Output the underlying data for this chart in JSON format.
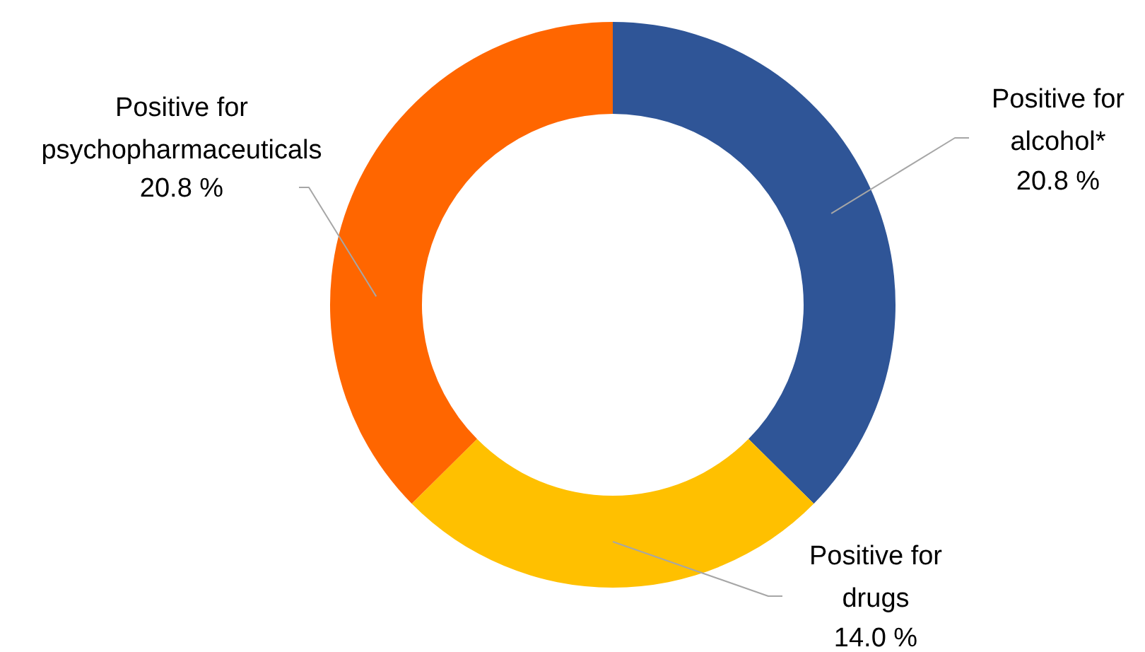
{
  "chart_data": {
    "type": "donut",
    "categories": [
      "Positive for\nalcohol*",
      "Positive for\ndrugs",
      "Positive for\npsychopharmaceuticals"
    ],
    "values": [
      20.8,
      14.0,
      20.8
    ],
    "colors": [
      "#2f5597",
      "#ffc000",
      "#ff6600"
    ],
    "value_labels": [
      "20.8 %",
      "14.0 %",
      "20.8 %"
    ]
  }
}
